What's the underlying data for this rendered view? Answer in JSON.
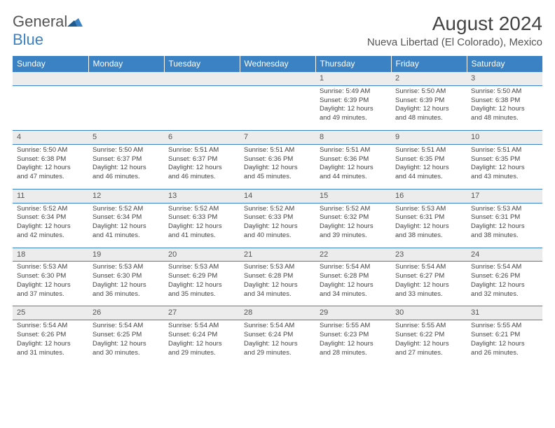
{
  "brand": {
    "name1": "General",
    "name2": "Blue"
  },
  "title": "August 2024",
  "location": "Nueva Libertad (El Colorado), Mexico",
  "colors": {
    "header_bg": "#3b82c4",
    "header_text": "#ffffff",
    "daynum_bg": "#ececec",
    "border": "#3b82c4",
    "text": "#444444"
  },
  "day_headers": [
    "Sunday",
    "Monday",
    "Tuesday",
    "Wednesday",
    "Thursday",
    "Friday",
    "Saturday"
  ],
  "weeks": [
    [
      null,
      null,
      null,
      null,
      {
        "n": "1",
        "sr": "5:49 AM",
        "ss": "6:39 PM",
        "dl": "12 hours and 49 minutes."
      },
      {
        "n": "2",
        "sr": "5:50 AM",
        "ss": "6:39 PM",
        "dl": "12 hours and 48 minutes."
      },
      {
        "n": "3",
        "sr": "5:50 AM",
        "ss": "6:38 PM",
        "dl": "12 hours and 48 minutes."
      }
    ],
    [
      {
        "n": "4",
        "sr": "5:50 AM",
        "ss": "6:38 PM",
        "dl": "12 hours and 47 minutes."
      },
      {
        "n": "5",
        "sr": "5:50 AM",
        "ss": "6:37 PM",
        "dl": "12 hours and 46 minutes."
      },
      {
        "n": "6",
        "sr": "5:51 AM",
        "ss": "6:37 PM",
        "dl": "12 hours and 46 minutes."
      },
      {
        "n": "7",
        "sr": "5:51 AM",
        "ss": "6:36 PM",
        "dl": "12 hours and 45 minutes."
      },
      {
        "n": "8",
        "sr": "5:51 AM",
        "ss": "6:36 PM",
        "dl": "12 hours and 44 minutes."
      },
      {
        "n": "9",
        "sr": "5:51 AM",
        "ss": "6:35 PM",
        "dl": "12 hours and 44 minutes."
      },
      {
        "n": "10",
        "sr": "5:51 AM",
        "ss": "6:35 PM",
        "dl": "12 hours and 43 minutes."
      }
    ],
    [
      {
        "n": "11",
        "sr": "5:52 AM",
        "ss": "6:34 PM",
        "dl": "12 hours and 42 minutes."
      },
      {
        "n": "12",
        "sr": "5:52 AM",
        "ss": "6:34 PM",
        "dl": "12 hours and 41 minutes."
      },
      {
        "n": "13",
        "sr": "5:52 AM",
        "ss": "6:33 PM",
        "dl": "12 hours and 41 minutes."
      },
      {
        "n": "14",
        "sr": "5:52 AM",
        "ss": "6:33 PM",
        "dl": "12 hours and 40 minutes."
      },
      {
        "n": "15",
        "sr": "5:52 AM",
        "ss": "6:32 PM",
        "dl": "12 hours and 39 minutes."
      },
      {
        "n": "16",
        "sr": "5:53 AM",
        "ss": "6:31 PM",
        "dl": "12 hours and 38 minutes."
      },
      {
        "n": "17",
        "sr": "5:53 AM",
        "ss": "6:31 PM",
        "dl": "12 hours and 38 minutes."
      }
    ],
    [
      {
        "n": "18",
        "sr": "5:53 AM",
        "ss": "6:30 PM",
        "dl": "12 hours and 37 minutes."
      },
      {
        "n": "19",
        "sr": "5:53 AM",
        "ss": "6:30 PM",
        "dl": "12 hours and 36 minutes."
      },
      {
        "n": "20",
        "sr": "5:53 AM",
        "ss": "6:29 PM",
        "dl": "12 hours and 35 minutes."
      },
      {
        "n": "21",
        "sr": "5:53 AM",
        "ss": "6:28 PM",
        "dl": "12 hours and 34 minutes."
      },
      {
        "n": "22",
        "sr": "5:54 AM",
        "ss": "6:28 PM",
        "dl": "12 hours and 34 minutes."
      },
      {
        "n": "23",
        "sr": "5:54 AM",
        "ss": "6:27 PM",
        "dl": "12 hours and 33 minutes."
      },
      {
        "n": "24",
        "sr": "5:54 AM",
        "ss": "6:26 PM",
        "dl": "12 hours and 32 minutes."
      }
    ],
    [
      {
        "n": "25",
        "sr": "5:54 AM",
        "ss": "6:26 PM",
        "dl": "12 hours and 31 minutes."
      },
      {
        "n": "26",
        "sr": "5:54 AM",
        "ss": "6:25 PM",
        "dl": "12 hours and 30 minutes."
      },
      {
        "n": "27",
        "sr": "5:54 AM",
        "ss": "6:24 PM",
        "dl": "12 hours and 29 minutes."
      },
      {
        "n": "28",
        "sr": "5:54 AM",
        "ss": "6:24 PM",
        "dl": "12 hours and 29 minutes."
      },
      {
        "n": "29",
        "sr": "5:55 AM",
        "ss": "6:23 PM",
        "dl": "12 hours and 28 minutes."
      },
      {
        "n": "30",
        "sr": "5:55 AM",
        "ss": "6:22 PM",
        "dl": "12 hours and 27 minutes."
      },
      {
        "n": "31",
        "sr": "5:55 AM",
        "ss": "6:21 PM",
        "dl": "12 hours and 26 minutes."
      }
    ]
  ]
}
